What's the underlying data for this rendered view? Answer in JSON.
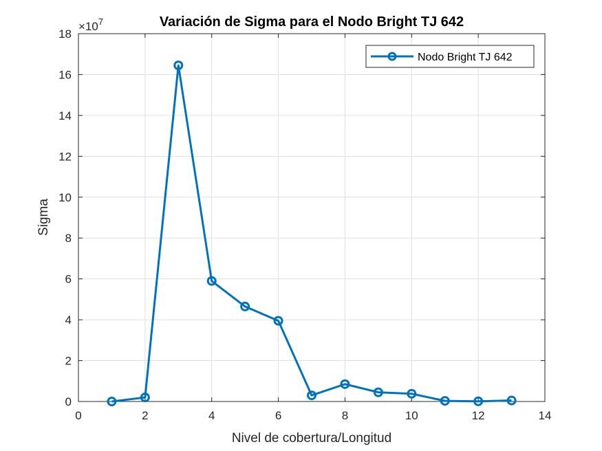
{
  "chart_data": {
    "type": "line",
    "title": "Variación de Sigma para el Nodo Bright TJ 642",
    "xlabel": "Nivel de cobertura/Longitud",
    "ylabel": "Sigma",
    "exponent_label": "×10",
    "exponent_power": "7",
    "xlim": [
      0,
      14
    ],
    "ylim": [
      0,
      18
    ],
    "x_ticks": [
      0,
      2,
      4,
      6,
      8,
      10,
      12,
      14
    ],
    "y_ticks": [
      0,
      2,
      4,
      6,
      8,
      10,
      12,
      14,
      16,
      18
    ],
    "grid": true,
    "legend_position": "top-right",
    "y_scale_factor": 10000000,
    "series": [
      {
        "name": "Nodo Bright TJ 642",
        "color": "#0072BD",
        "marker": "circle",
        "x": [
          1,
          2,
          3,
          4,
          5,
          6,
          7,
          8,
          9,
          10,
          11,
          12,
          13
        ],
        "y": [
          0.0,
          0.2,
          16.45,
          5.9,
          4.65,
          3.95,
          0.3,
          0.85,
          0.45,
          0.38,
          0.03,
          0.01,
          0.05
        ]
      }
    ]
  }
}
